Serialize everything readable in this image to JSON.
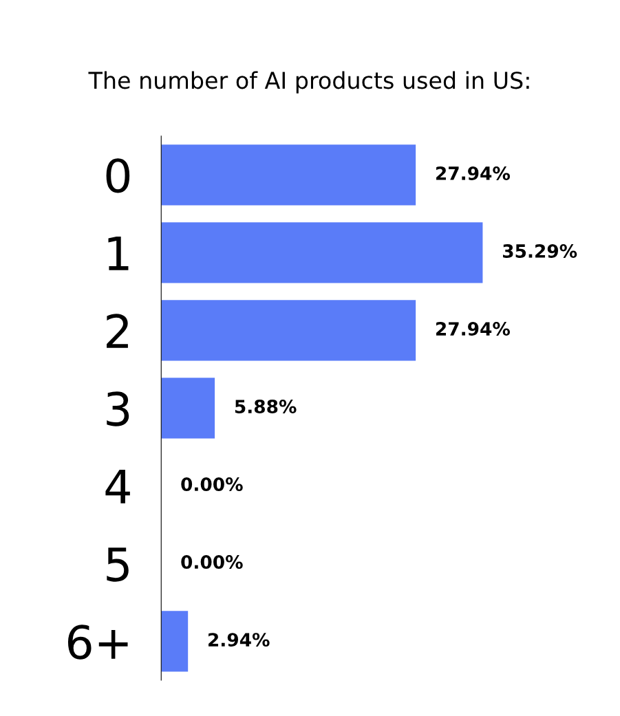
{
  "chart_data": {
    "type": "bar",
    "orientation": "horizontal",
    "title": "The number of AI products used in US:",
    "categories": [
      "0",
      "1",
      "2",
      "3",
      "4",
      "5",
      "6+"
    ],
    "values": [
      27.94,
      35.29,
      27.94,
      5.88,
      0.0,
      0.0,
      2.94
    ],
    "value_labels": [
      "27.94%",
      "35.29%",
      "27.94%",
      "5.88%",
      "0.00%",
      "0.00%",
      "2.94%"
    ],
    "color": "#5a7cf8",
    "grid": false,
    "legend": false
  }
}
